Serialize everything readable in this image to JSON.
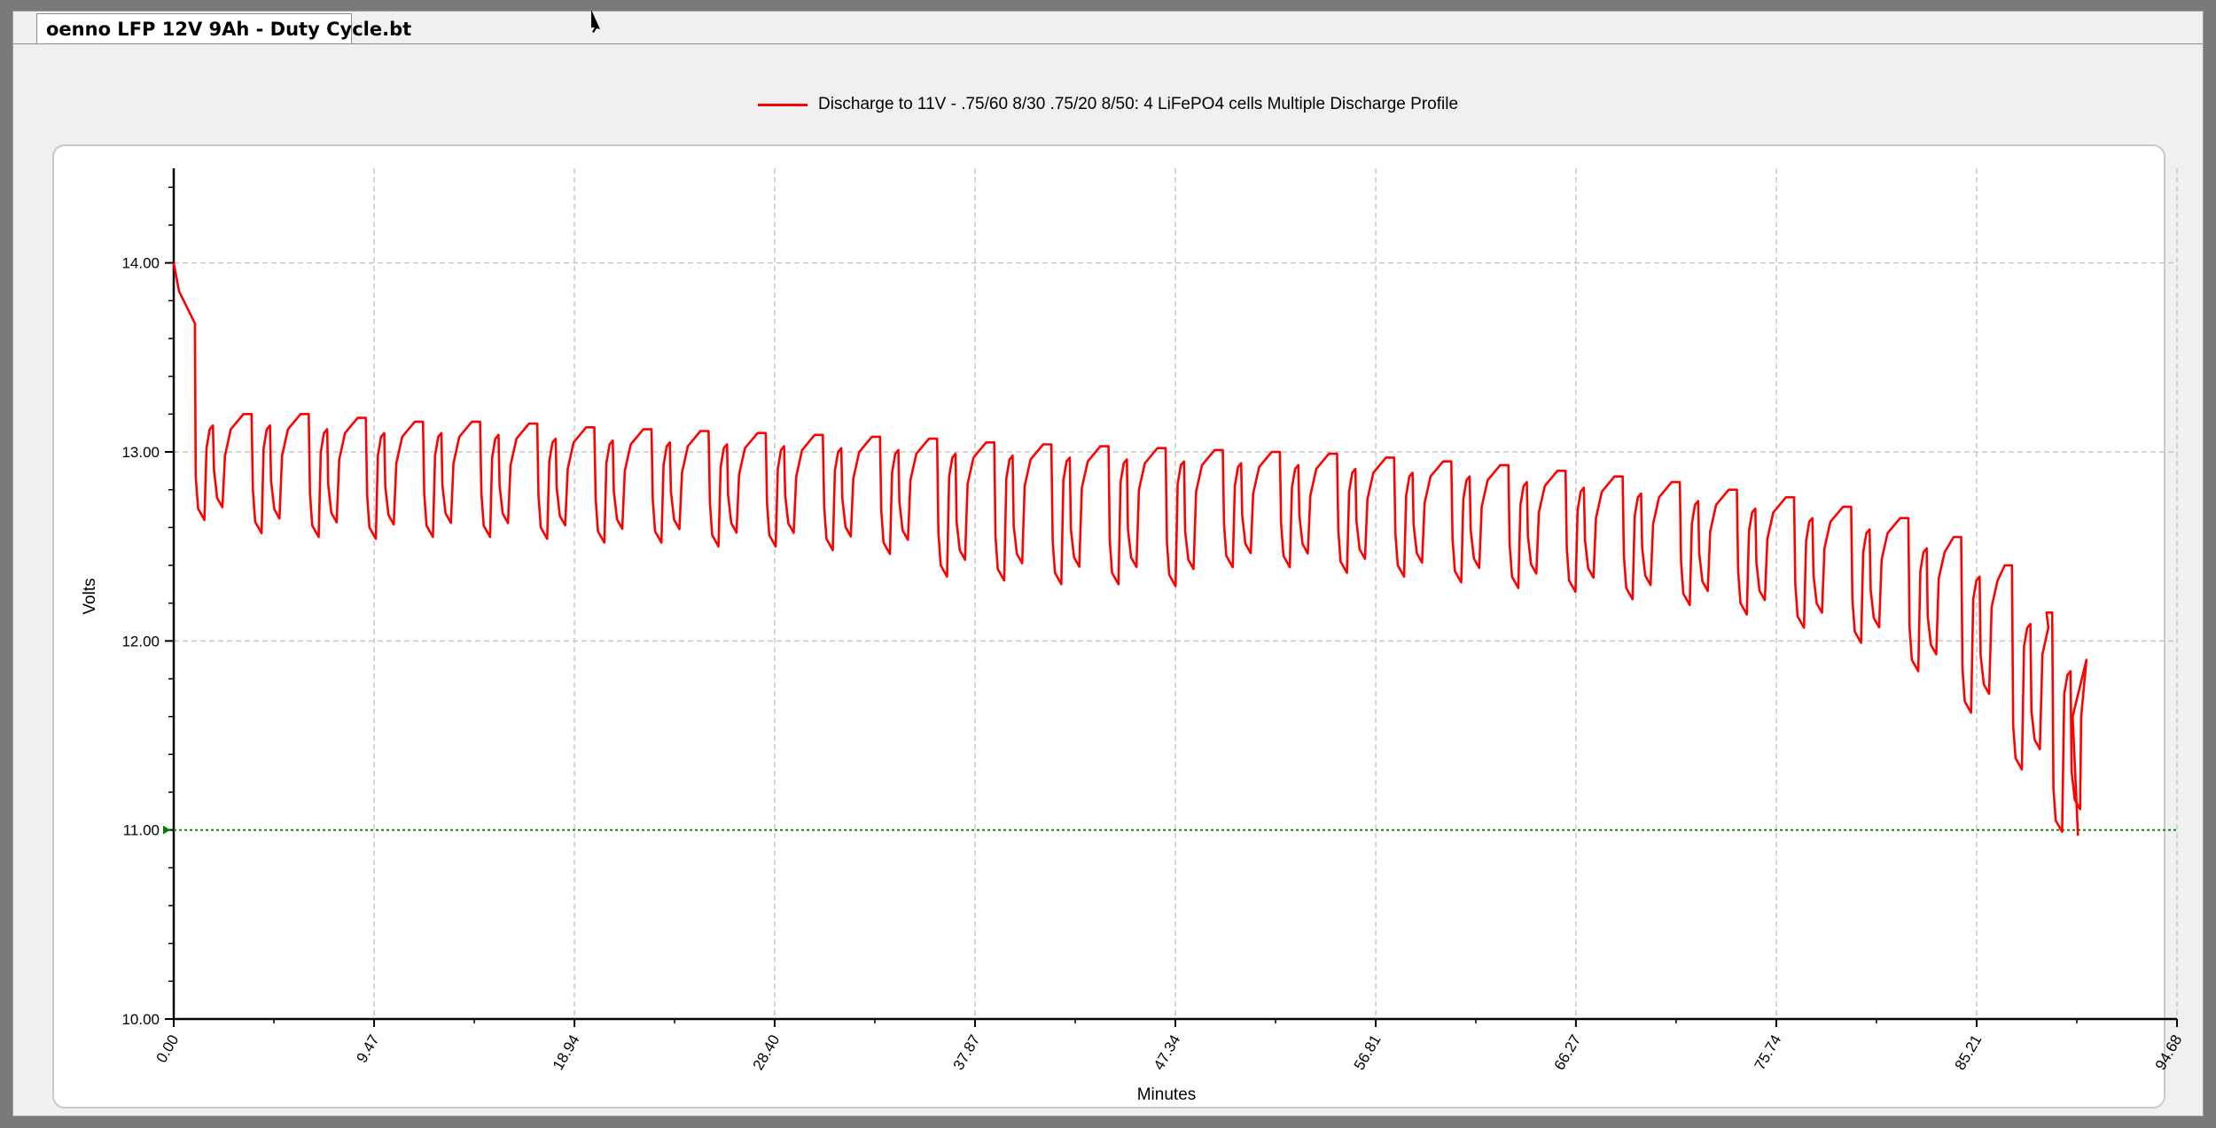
{
  "window": {
    "tab_title": "oenno LFP 12V 9Ah - Duty Cycle.bt"
  },
  "colors": {
    "series": "#ff0000",
    "cutoff": "#008000",
    "grid": "#c8c8c8",
    "axis": "#000000"
  },
  "chart_data": {
    "type": "line",
    "title": "",
    "xlabel": "Minutes",
    "ylabel": "Volts",
    "xlim": [
      0,
      94.68
    ],
    "ylim": [
      10.0,
      14.5
    ],
    "x_ticks": [
      "0.00",
      "9.47",
      "18.94",
      "28.40",
      "37.87",
      "47.34",
      "56.81",
      "66.27",
      "75.74",
      "85.21",
      "94.68"
    ],
    "y_ticks": [
      "10.00",
      "11.00",
      "12.00",
      "13.00",
      "14.00"
    ],
    "grid": true,
    "legend_position": "top-center",
    "reference_line": {
      "y": 11.0,
      "label": "11.00"
    },
    "series": [
      {
        "name": "Discharge to 11V - .75/60 8/30 .75/20 8/50: 4 LiFePO4 cells Multiple Discharge Profile",
        "end_x": 90.0,
        "initial": {
          "start": 14.0,
          "end": 13.68,
          "end_x": 1.0
        },
        "pulses": [
          {
            "x": 1.0,
            "low": 12.62,
            "high": 13.2
          },
          {
            "x": 3.7,
            "low": 12.55,
            "high": 13.2
          },
          {
            "x": 6.4,
            "low": 12.53,
            "high": 13.18
          },
          {
            "x": 9.1,
            "low": 12.52,
            "high": 13.16
          },
          {
            "x": 11.8,
            "low": 12.53,
            "high": 13.16
          },
          {
            "x": 14.5,
            "low": 12.53,
            "high": 13.15
          },
          {
            "x": 17.2,
            "low": 12.52,
            "high": 13.13
          },
          {
            "x": 19.9,
            "low": 12.5,
            "high": 13.12
          },
          {
            "x": 22.6,
            "low": 12.5,
            "high": 13.11
          },
          {
            "x": 25.3,
            "low": 12.48,
            "high": 13.1
          },
          {
            "x": 28.0,
            "low": 12.48,
            "high": 13.09
          },
          {
            "x": 30.7,
            "low": 12.46,
            "high": 13.08
          },
          {
            "x": 33.4,
            "low": 12.44,
            "high": 13.07
          },
          {
            "x": 36.1,
            "low": 12.32,
            "high": 13.05
          },
          {
            "x": 38.8,
            "low": 12.3,
            "high": 13.04
          },
          {
            "x": 41.5,
            "low": 12.28,
            "high": 13.03
          },
          {
            "x": 44.2,
            "low": 12.28,
            "high": 13.02
          },
          {
            "x": 46.9,
            "low": 12.27,
            "high": 13.01
          },
          {
            "x": 49.6,
            "low": 12.37,
            "high": 13.0
          },
          {
            "x": 52.3,
            "low": 12.37,
            "high": 12.99
          },
          {
            "x": 55.0,
            "low": 12.34,
            "high": 12.97
          },
          {
            "x": 57.7,
            "low": 12.32,
            "high": 12.95
          },
          {
            "x": 60.4,
            "low": 12.29,
            "high": 12.93
          },
          {
            "x": 63.1,
            "low": 12.26,
            "high": 12.9
          },
          {
            "x": 65.8,
            "low": 12.24,
            "high": 12.87
          },
          {
            "x": 68.5,
            "low": 12.2,
            "high": 12.84
          },
          {
            "x": 71.2,
            "low": 12.17,
            "high": 12.8
          },
          {
            "x": 73.9,
            "low": 12.12,
            "high": 12.76
          },
          {
            "x": 76.6,
            "low": 12.05,
            "high": 12.71
          },
          {
            "x": 79.3,
            "low": 11.97,
            "high": 12.65
          },
          {
            "x": 82.0,
            "low": 11.82,
            "high": 12.55
          },
          {
            "x": 84.5,
            "low": 11.6,
            "high": 12.4
          },
          {
            "x": 86.9,
            "low": 11.3,
            "high": 12.15
          },
          {
            "x": 88.8,
            "low": 10.97,
            "high": 11.9
          }
        ]
      }
    ]
  }
}
